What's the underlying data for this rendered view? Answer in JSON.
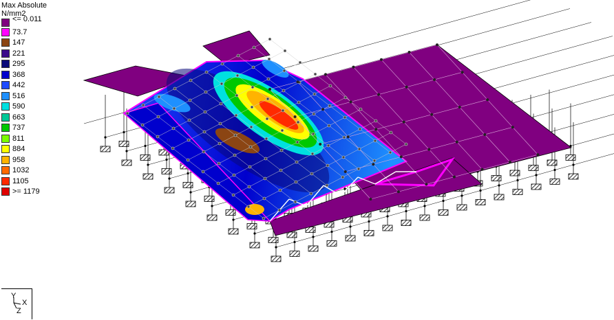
{
  "legend": {
    "title": "Max Absolute",
    "unit": "N/mm2",
    "entries": [
      {
        "label": "<= 0.011",
        "color": "#800080"
      },
      {
        "label": "73.7",
        "color": "#ff00ff"
      },
      {
        "label": "147",
        "color": "#8b4513"
      },
      {
        "label": "221",
        "color": "#3b0a8a"
      },
      {
        "label": "295",
        "color": "#0a0a7a"
      },
      {
        "label": "368",
        "color": "#0000cd"
      },
      {
        "label": "442",
        "color": "#1e4bff"
      },
      {
        "label": "516",
        "color": "#1e90ff"
      },
      {
        "label": "590",
        "color": "#00e0e0"
      },
      {
        "label": "663",
        "color": "#00c896"
      },
      {
        "label": "737",
        "color": "#00c800"
      },
      {
        "label": "811",
        "color": "#7cfc00"
      },
      {
        "label": "884",
        "color": "#ffff00"
      },
      {
        "label": "958",
        "color": "#ffb300"
      },
      {
        "label": "1032",
        "color": "#ff6a00"
      },
      {
        "label": "1105",
        "color": "#ff2a00"
      },
      {
        "label": ">= 1179",
        "color": "#e00000"
      }
    ]
  },
  "axis_indicator": {
    "y": "Y",
    "x": "X",
    "z": "Z"
  }
}
